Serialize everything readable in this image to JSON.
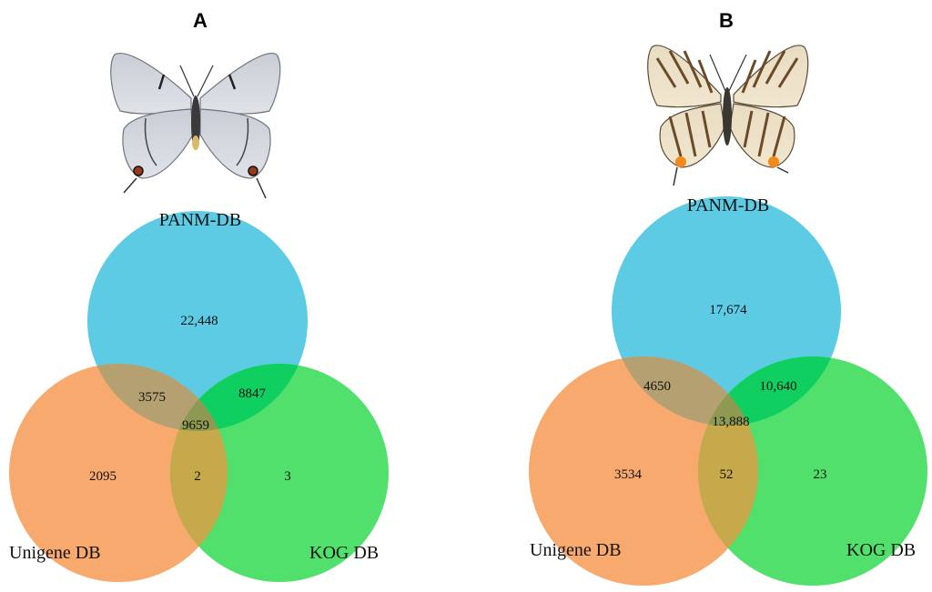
{
  "colors": {
    "panm": "#5ccbe3",
    "unigene": "#f7a96e",
    "kog": "#52e06c",
    "panm_kog_overlap": "#0fcf60",
    "panm_unigene_overlap": "#b4a070",
    "unigene_kog_overlap": "#c6a94a",
    "all_overlap": "#8e9a52"
  },
  "panels": [
    {
      "letter": "A",
      "butterfly_icon": "butterfly-silver-icon",
      "labels": {
        "panm": "PANM-DB",
        "unigene": "Unigene DB",
        "kog": "KOG DB"
      },
      "counts": {
        "panm_only": "22,448",
        "panm_unigene": "3575",
        "panm_kog": "8847",
        "all": "9659",
        "unigene_only": "2095",
        "unigene_kog": "2",
        "kog_only": "3"
      }
    },
    {
      "letter": "B",
      "butterfly_icon": "butterfly-striped-icon",
      "labels": {
        "panm": "PANM-DB",
        "unigene": "Unigene DB",
        "kog": "KOG DB"
      },
      "counts": {
        "panm_only": "17,674",
        "panm_unigene": "4650",
        "panm_kog": "10,640",
        "all": "13,888",
        "unigene_only": "3534",
        "unigene_kog": "52",
        "kog_only": "23"
      }
    }
  ]
}
